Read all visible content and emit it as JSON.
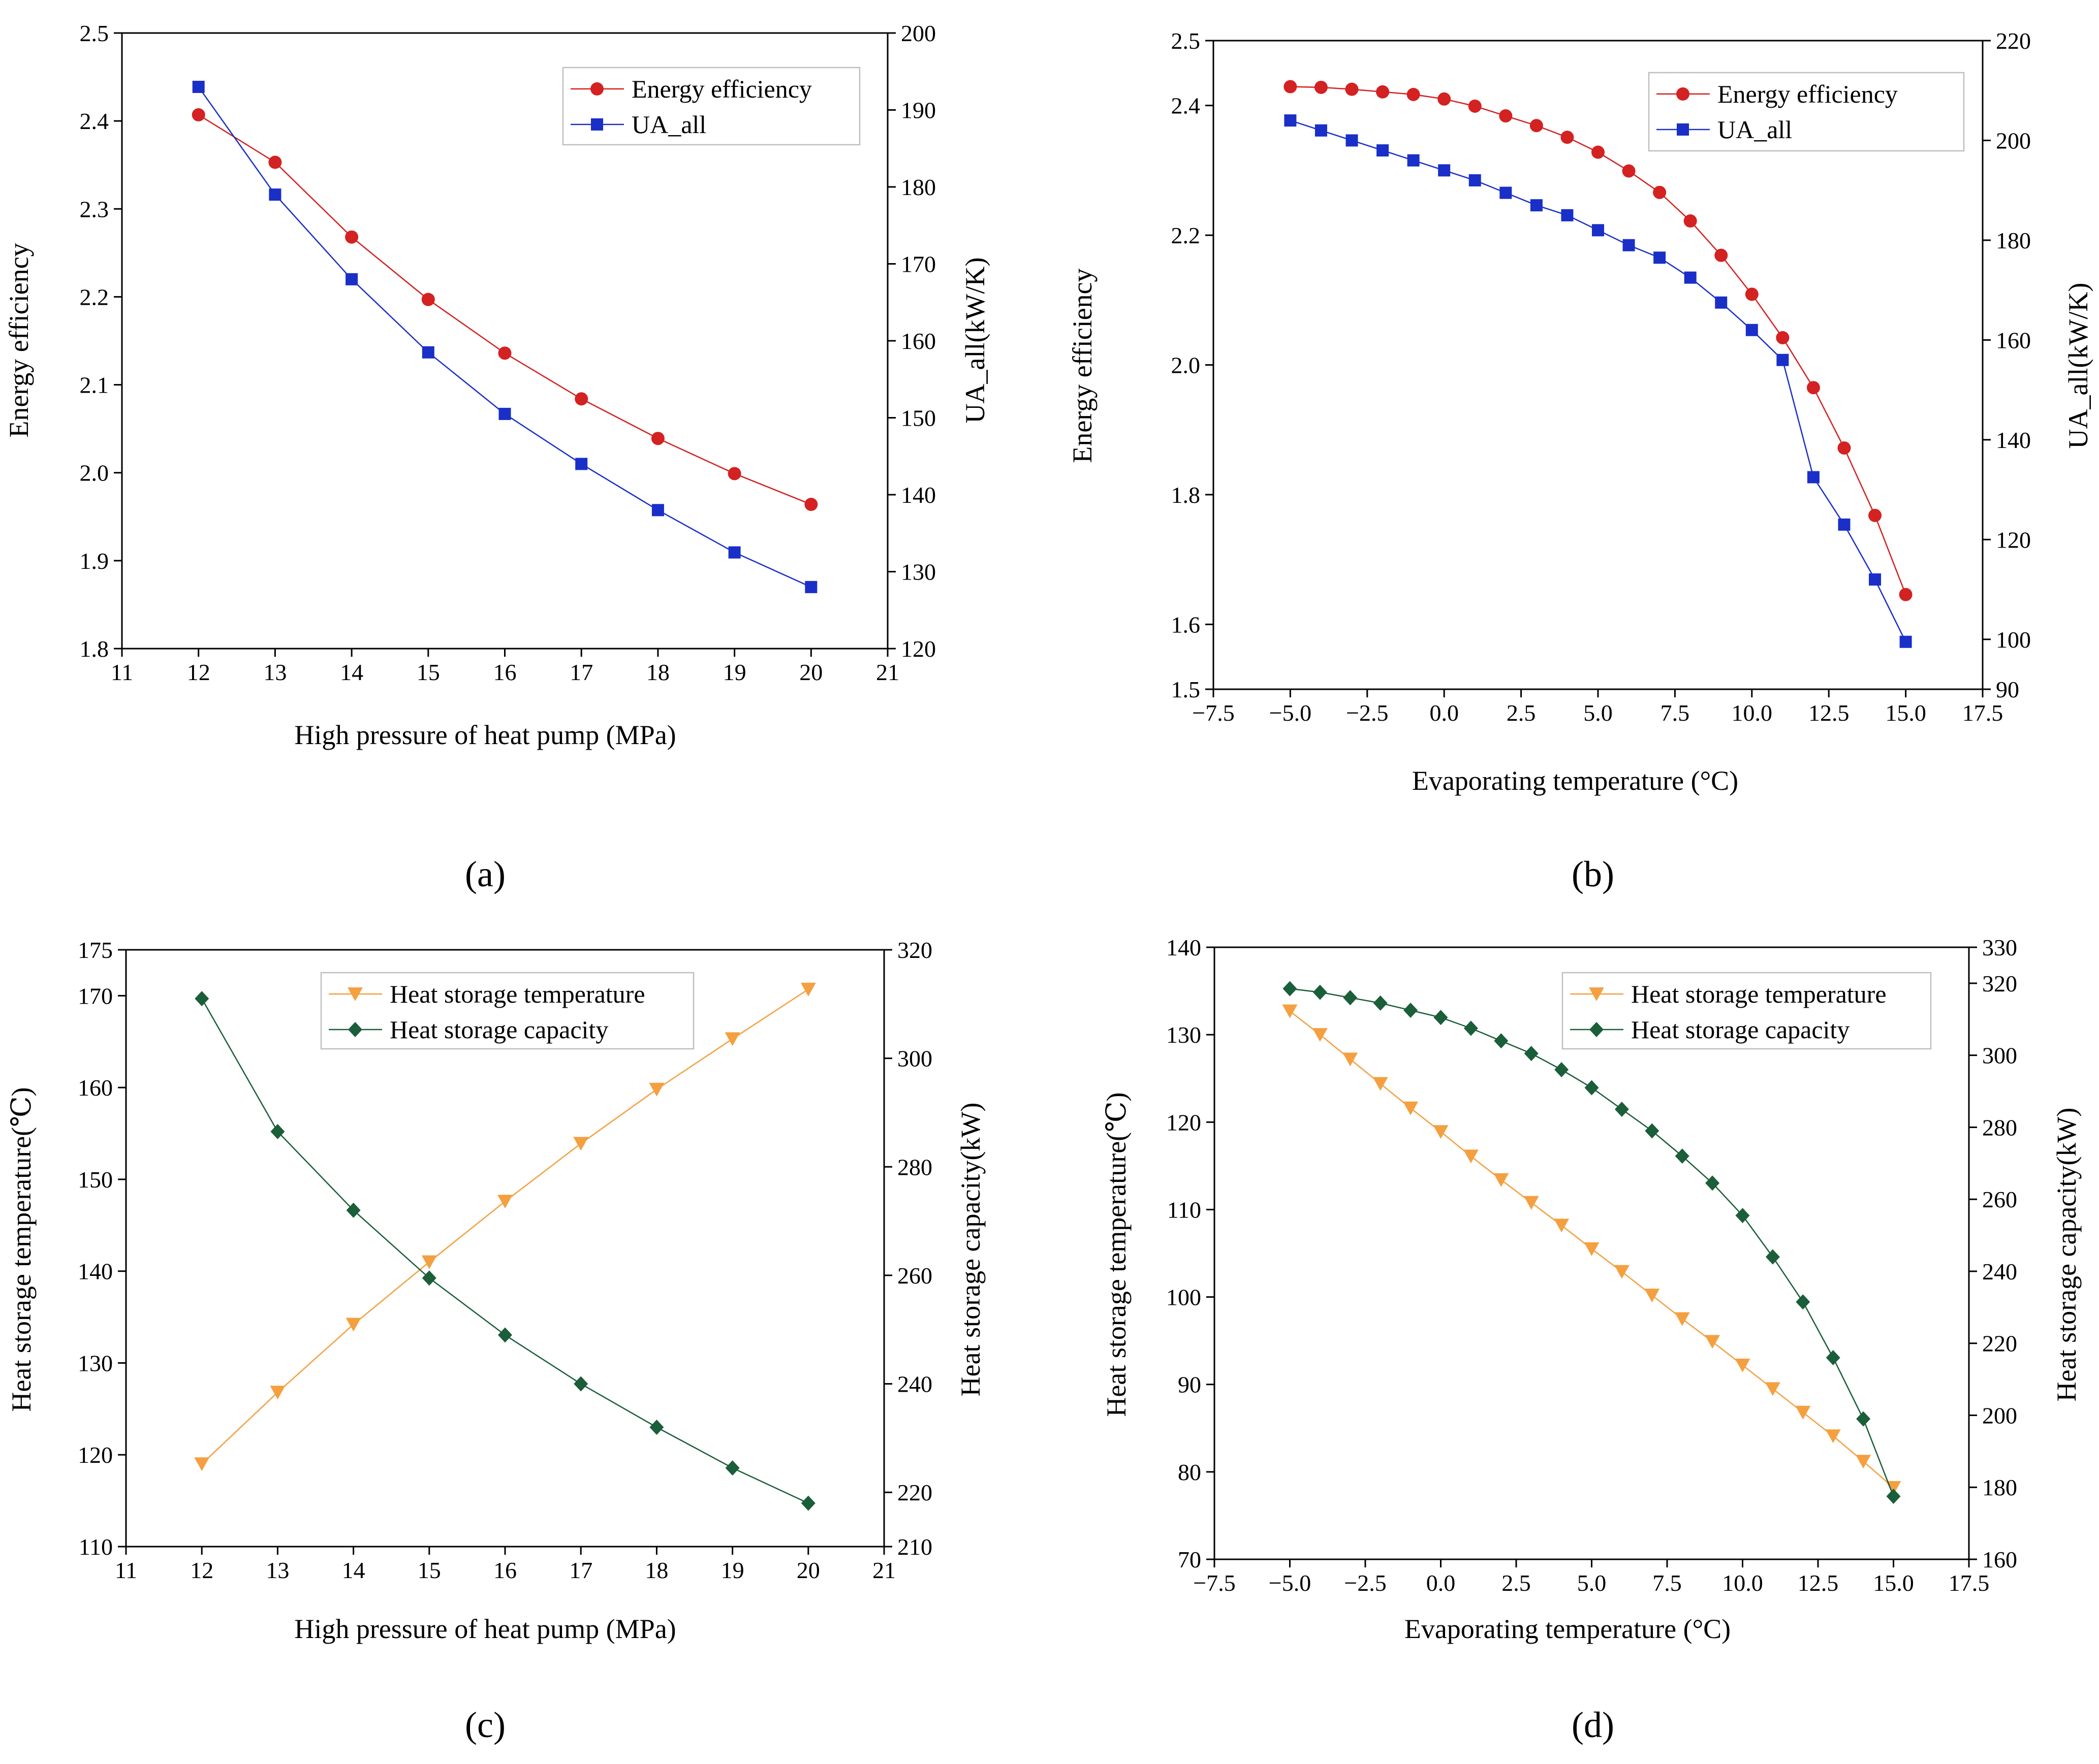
{
  "chart_data": [
    {
      "type": "line",
      "panel_label": "(a)",
      "xlabel": "High pressure of heat pump (MPa)",
      "ylabel_left": "Energy efficiency",
      "ylabel_right": "UA_all(kW/K)",
      "xlim": [
        11,
        21
      ],
      "ylim_left": [
        1.8,
        2.5
      ],
      "ylim_right": [
        120,
        200
      ],
      "x_ticks": [
        "11",
        "12",
        "13",
        "14",
        "15",
        "16",
        "17",
        "18",
        "19",
        "20",
        "21"
      ],
      "y_left_ticks": [
        "1.8",
        "1.9",
        "2.0",
        "2.1",
        "2.2",
        "2.3",
        "2.4",
        "2.5"
      ],
      "y_right_ticks": [
        "120",
        "130",
        "140",
        "150",
        "160",
        "170",
        "180",
        "190",
        "200"
      ],
      "legend_position": "top-right",
      "x": [
        12,
        13,
        14,
        15,
        16,
        17,
        18,
        19,
        20
      ],
      "series": [
        {
          "name": "Energy efficiency",
          "axis": "left",
          "marker": "circle",
          "color": "#d42121",
          "values": [
            2.407,
            2.353,
            2.268,
            2.197,
            2.136,
            2.084,
            2.039,
            1.999,
            1.964
          ]
        },
        {
          "name": "UA_all",
          "axis": "right",
          "marker": "square",
          "color": "#1a2fc7",
          "values": [
            193.0,
            179.0,
            168.0,
            158.5,
            150.5,
            144.0,
            138.0,
            132.5,
            128.0
          ]
        }
      ]
    },
    {
      "type": "line",
      "panel_label": "(b)",
      "xlabel": "Evaporating temperature (°C)",
      "ylabel_left": "Energy efficiency",
      "ylabel_right": "UA_all(kW/K)",
      "xlim": [
        -7.5,
        17.5
      ],
      "ylim_left": [
        1.5,
        2.5
      ],
      "ylim_right": [
        90,
        220
      ],
      "x_ticks": [
        "−7.5",
        "−5.0",
        "−2.5",
        "0.0",
        "2.5",
        "5.0",
        "7.5",
        "10.0",
        "12.5",
        "15.0",
        "17.5"
      ],
      "y_left_ticks": [
        "1.5",
        "1.6",
        "1.8",
        "2.0",
        "2.2",
        "2.4",
        "2.5"
      ],
      "y_right_ticks": [
        "90",
        "100",
        "120",
        "140",
        "160",
        "180",
        "200",
        "220"
      ],
      "legend_position": "top-right",
      "x": [
        -5,
        -4,
        -3,
        -2,
        -1,
        0,
        1,
        2,
        3,
        4,
        5,
        6,
        7,
        8,
        9,
        10,
        11,
        12,
        13,
        14,
        15
      ],
      "series": [
        {
          "name": "Energy efficiency",
          "axis": "left",
          "marker": "circle",
          "color": "#d42121",
          "values": [
            2.429,
            2.428,
            2.425,
            2.421,
            2.417,
            2.41,
            2.399,
            2.384,
            2.369,
            2.351,
            2.328,
            2.299,
            2.266,
            2.222,
            2.169,
            2.109,
            2.042,
            1.965,
            1.872,
            1.768,
            1.646
          ]
        },
        {
          "name": "UA_all",
          "axis": "right",
          "marker": "square",
          "color": "#1a2fc7",
          "values": [
            204,
            202,
            200,
            198,
            196,
            194,
            192,
            189.5,
            187,
            185,
            182,
            179,
            176.5,
            172.5,
            167.5,
            162,
            156,
            132.5,
            123,
            112,
            99.5
          ]
        }
      ]
    },
    {
      "type": "line",
      "panel_label": "(c)",
      "xlabel": "High pressure of heat pump (MPa)",
      "ylabel_left": "Heat storage temperature(℃)",
      "ylabel_right": "Heat storage capacity(kW)",
      "xlim": [
        11,
        21
      ],
      "ylim_left": [
        110,
        175
      ],
      "ylim_right": [
        210,
        320
      ],
      "x_ticks": [
        "11",
        "12",
        "13",
        "14",
        "15",
        "16",
        "17",
        "18",
        "19",
        "20",
        "21"
      ],
      "y_left_ticks": [
        "110",
        "120",
        "130",
        "140",
        "150",
        "160",
        "170",
        "175"
      ],
      "y_right_ticks": [
        "210",
        "220",
        "240",
        "260",
        "280",
        "300",
        "320"
      ],
      "legend_position": "top-center",
      "x": [
        12,
        13,
        14,
        15,
        16,
        17,
        18,
        19,
        20
      ],
      "series": [
        {
          "name": "Heat storage temperature",
          "axis": "left",
          "marker": "triangle-down",
          "color": "#f4a040",
          "values": [
            119.0,
            126.8,
            134.2,
            141.0,
            147.6,
            153.9,
            159.8,
            165.3,
            170.7
          ]
        },
        {
          "name": "Heat storage capacity",
          "axis": "right",
          "marker": "diamond",
          "color": "#1b5e3a",
          "values": [
            311.0,
            286.5,
            272.0,
            259.5,
            249.0,
            240.0,
            232.0,
            224.5,
            218.0
          ]
        }
      ]
    },
    {
      "type": "line",
      "panel_label": "(d)",
      "xlabel": "Evaporating temperature (°C)",
      "ylabel_left": "Heat storage temperature(℃)",
      "ylabel_right": "Heat storage capacity(kW)",
      "xlim": [
        -7.5,
        17.5
      ],
      "ylim_left": [
        70,
        140
      ],
      "ylim_right": [
        160,
        330
      ],
      "x_ticks": [
        "−7.5",
        "−5.0",
        "−2.5",
        "0.0",
        "2.5",
        "5.0",
        "7.5",
        "10.0",
        "12.5",
        "15.0",
        "17.5"
      ],
      "y_left_ticks": [
        "70",
        "80",
        "90",
        "100",
        "110",
        "120",
        "130",
        "140"
      ],
      "y_right_ticks": [
        "160",
        "180",
        "200",
        "220",
        "240",
        "260",
        "280",
        "300",
        "320",
        "330"
      ],
      "legend_position": "top-right",
      "x": [
        -5,
        -4,
        -3,
        -2,
        -1,
        0,
        1,
        2,
        3,
        4,
        5,
        6,
        7,
        8,
        9,
        10,
        11,
        12,
        13,
        14,
        15
      ],
      "series": [
        {
          "name": "Heat storage temperature",
          "axis": "left",
          "marker": "triangle-down",
          "color": "#f4a040",
          "values": [
            132.7,
            130.0,
            127.2,
            124.4,
            121.6,
            118.9,
            116.1,
            113.4,
            110.8,
            108.2,
            105.5,
            102.9,
            100.2,
            97.5,
            94.9,
            92.2,
            89.5,
            86.8,
            84.1,
            81.2,
            78.2
          ]
        },
        {
          "name": "Heat storage capacity",
          "axis": "right",
          "marker": "diamond",
          "color": "#1b5e3a",
          "values": [
            318.5,
            317.5,
            316.0,
            314.5,
            312.5,
            310.5,
            307.5,
            304.0,
            300.5,
            296.0,
            291.0,
            285.0,
            279.0,
            272.0,
            264.5,
            255.5,
            244.0,
            231.5,
            216.0,
            199.0,
            177.5
          ]
        }
      ]
    }
  ]
}
